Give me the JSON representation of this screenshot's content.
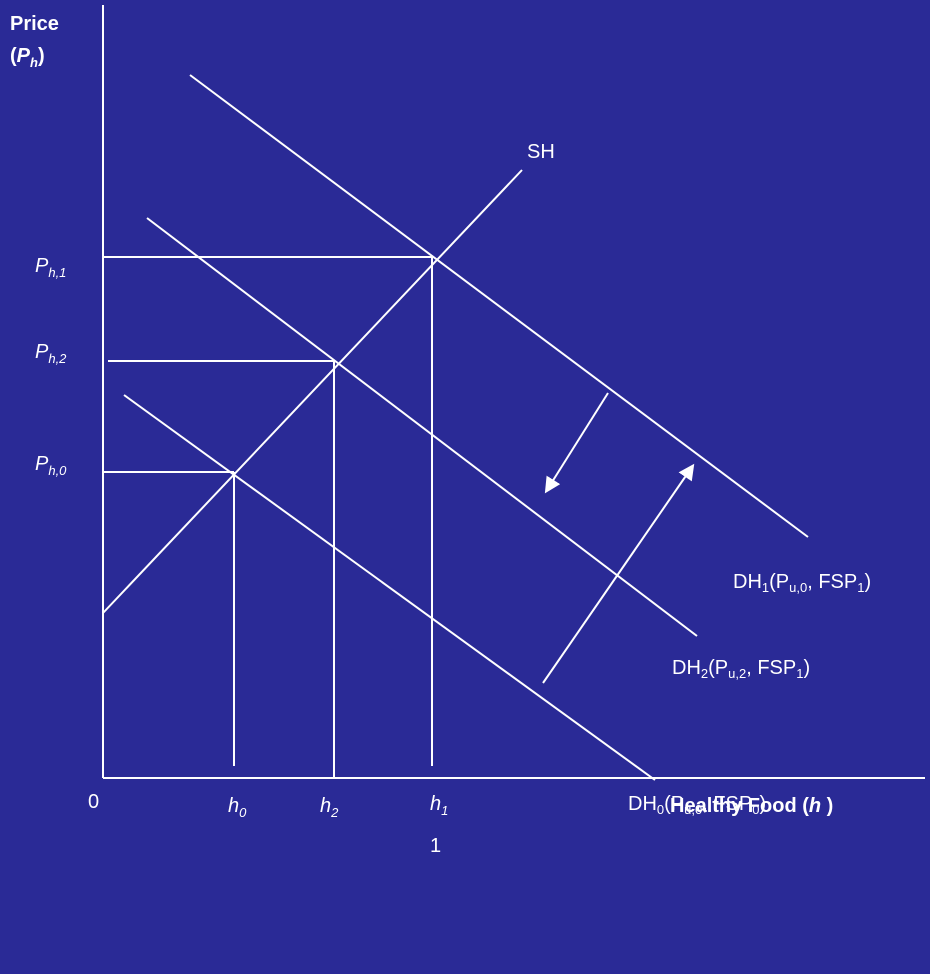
{
  "y_axis": {
    "line1": "Price",
    "line2": [
      "(",
      "P",
      "h",
      ")"
    ]
  },
  "x_axis": {
    "parts": [
      "Healthy Food (",
      "h",
      " )"
    ]
  },
  "origin": "0",
  "supply_label": "SH",
  "price_labels": [
    [
      "P",
      "h,1"
    ],
    [
      "P",
      "h,2"
    ],
    [
      "P",
      "h,0"
    ]
  ],
  "quantity_labels": [
    [
      "h",
      "0"
    ],
    [
      "h",
      "2"
    ],
    [
      "h",
      "1"
    ]
  ],
  "stray_label": "1",
  "demand_labels": [
    [
      "DH",
      "1",
      "(P",
      "u,0",
      ", FSP",
      "1",
      ")"
    ],
    [
      "DH",
      "2",
      "(P",
      "u,2",
      ", FSP",
      "1",
      ")"
    ],
    [
      "DH",
      "0",
      "(P",
      "u,0",
      ", FSP",
      "0",
      ")"
    ]
  ]
}
